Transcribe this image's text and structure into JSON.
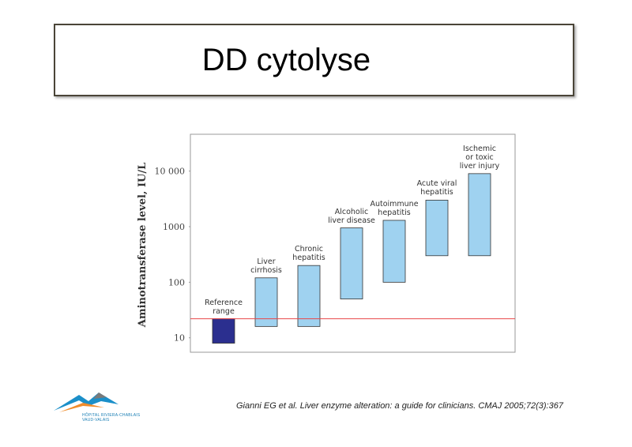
{
  "title": "DD cytolyse",
  "chart_data": {
    "type": "floating_bar",
    "ylabel": "Aminotransferase level, IU/L",
    "categories": [
      "Reference\nrange",
      "Liver\ncirrhosis",
      "Chronic\nhepatitis",
      "Alcoholic\nliver disease",
      "Autoimmune\nhepatitis",
      "Acute viral\nhepatitis",
      "Ischemic\nor toxic\nliver injury"
    ],
    "low": [
      8,
      16,
      16,
      50,
      100,
      300,
      300
    ],
    "high": [
      22,
      120,
      200,
      950,
      1300,
      3000,
      9000
    ],
    "colors": [
      "#2b2f8f",
      "#9fd2f0",
      "#9fd2f0",
      "#9fd2f0",
      "#9fd2f0",
      "#9fd2f0",
      "#9fd2f0"
    ],
    "reference_line": 22,
    "reference_line_color": "#e8474a",
    "log_scale": true,
    "ylim": [
      5.5,
      46000
    ],
    "yticks": [
      10,
      100,
      1000,
      {
        "value": 10000,
        "label": "10 000"
      }
    ]
  },
  "citation": "Gianni EG et al. Liver enzyme alteration: a guide for clinicians. CMAJ 2005;72(3):367",
  "logo": {
    "line1": "HÔPITAL RIVIERA-CHABLAIS",
    "line2": "VAUD-VALAIS"
  }
}
